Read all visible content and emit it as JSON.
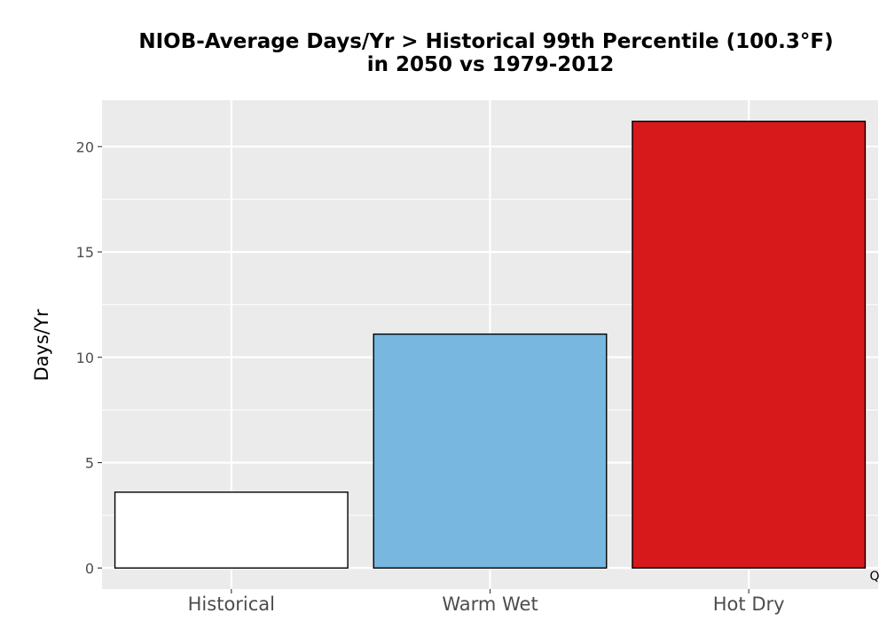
{
  "chart_data": {
    "type": "bar",
    "title_lines": [
      "NIOB-Average Days/Yr > Historical 99th Percentile (100.3°F)",
      "in 2050 vs 1979-2012"
    ],
    "xlabel": "",
    "ylabel": "Days/Yr",
    "categories": [
      "Historical",
      "Warm Wet",
      "Hot Dry"
    ],
    "values": [
      3.6,
      11.1,
      21.2
    ],
    "bar_colors": [
      "#ffffff",
      "#77b7e0",
      "#d7191c"
    ],
    "bar_edge_color": "#000000",
    "ylim": [
      -1,
      22.2
    ],
    "y_ticks": [
      0,
      5,
      10,
      15,
      20
    ],
    "grid": true,
    "panel_background": "#ebebeb",
    "grid_color": "#ffffff",
    "corner_mark": "Q"
  }
}
